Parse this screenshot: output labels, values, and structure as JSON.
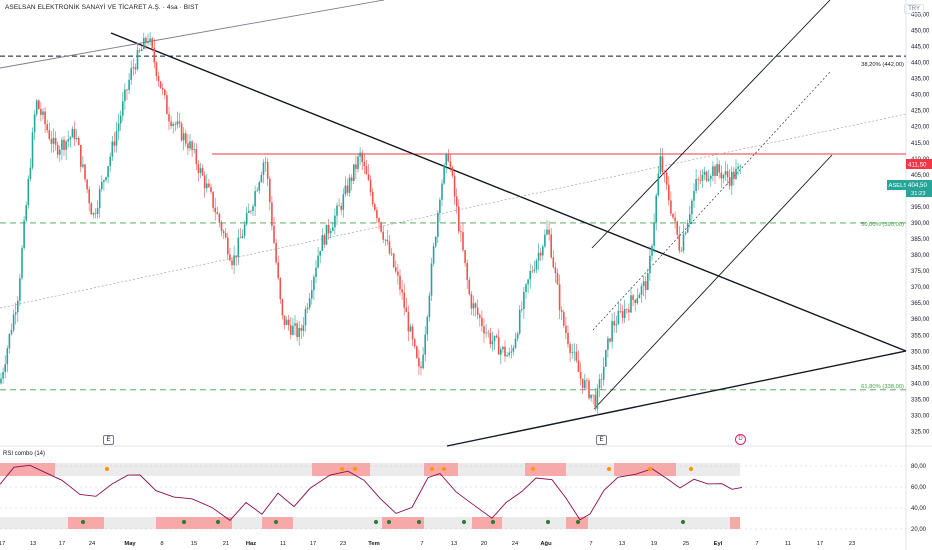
{
  "header": {
    "title": "ASELSAN ELEKTRONİK SANAYİ VE TİCARET A.Ş. · 4sa · BIST",
    "currency": "TRY"
  },
  "price_label": {
    "symbol": "ASELS",
    "price": "404,50",
    "countdown": "31:23"
  },
  "level_label": {
    "value": "411,50"
  },
  "fib_levels": [
    {
      "label": "38,20% (442,00)",
      "value": 442.0,
      "color": "#131722"
    },
    {
      "label": "50,00% (390,00)",
      "value": 390.0,
      "color": "#43a047"
    },
    {
      "label": "61,80% (338,00)",
      "value": 338.0,
      "color": "#43a047"
    }
  ],
  "markers": {
    "earnings": "E",
    "dividend": "D"
  },
  "rsi": {
    "title": "RSI combo (14)",
    "ticks": [
      "80,00",
      "60,00",
      "40,00",
      "20,00"
    ],
    "tick_values": [
      80,
      60,
      40,
      20
    ]
  },
  "chart_data": {
    "type": "candlestick",
    "y_ticks": [
      455,
      450,
      445,
      440,
      435,
      430,
      425,
      420,
      415,
      410,
      405,
      400,
      395,
      390,
      385,
      380,
      375,
      370,
      365,
      360,
      355,
      350,
      345,
      340,
      335,
      330,
      325
    ],
    "ylim": [
      322,
      458
    ],
    "x_ticks": [
      "17",
      "13",
      "17",
      "24",
      "May",
      "8",
      "15",
      "21",
      "Haz",
      "11",
      "17",
      "23",
      "Tem",
      "7",
      "13",
      "20",
      "24",
      "Ağu",
      "7",
      "13",
      "19",
      "25",
      "Eyl",
      "7",
      "11",
      "17",
      "23"
    ],
    "resistance_level": 411.5,
    "last_price": 404.5,
    "rsi_overbought": 80,
    "rsi_oversold": 20,
    "colors": {
      "up": "#26a69a",
      "down": "#ef5350",
      "rsi": "#880e4f"
    }
  }
}
